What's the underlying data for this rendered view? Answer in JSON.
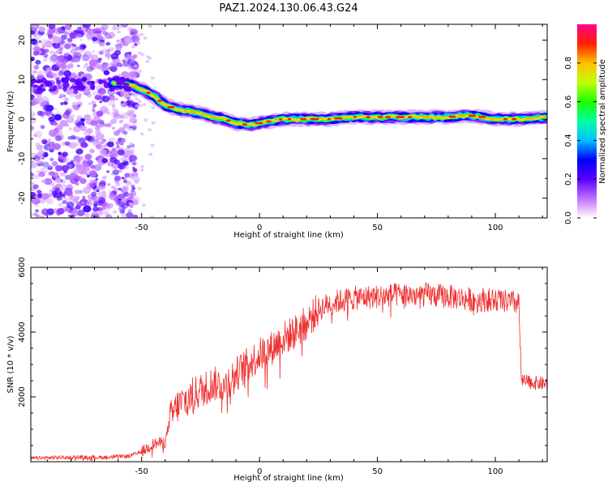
{
  "title": "PAZ1.2024.130.06.43.G24",
  "chart_data": [
    {
      "type": "heatmap",
      "xlabel": "Height of straight line (km)",
      "ylabel": "Frequency (Hz)",
      "xlim": [
        -97,
        122
      ],
      "ylim": [
        -25,
        24
      ],
      "xticks": [
        -50,
        0,
        50,
        100
      ],
      "yticks": [
        -20,
        -10,
        0,
        10,
        20
      ],
      "grid": false,
      "colorbar": {
        "label": "Normalized spectral amplitude",
        "ticks": [
          0.0,
          0.2,
          0.4,
          0.6,
          0.8
        ],
        "range": [
          0,
          1
        ],
        "colormap": [
          "#ffffff",
          "#c070ff",
          "#5a00ff",
          "#0000ff",
          "#00c0ff",
          "#00ffa0",
          "#20ff00",
          "#c0ff00",
          "#ffc000",
          "#ff2000",
          "#ff0090"
        ]
      },
      "ridge": {
        "description_values_x": [
          -97,
          -90,
          -80,
          -70,
          -62,
          -58,
          -54,
          -50,
          -45,
          -40,
          -35,
          -30,
          -25,
          -20,
          -15,
          -10,
          -5,
          0,
          5,
          10,
          20,
          30,
          40,
          50,
          60,
          70,
          80,
          88,
          95,
          100,
          110,
          122
        ],
        "frequency_hz": [
          8,
          8.5,
          9,
          9.5,
          9,
          9,
          8.5,
          7.5,
          6,
          3.5,
          2.5,
          2,
          1.5,
          0.5,
          0,
          -1,
          -1.5,
          -1,
          -0.5,
          0,
          0,
          0,
          0.5,
          0.5,
          0.5,
          0.5,
          0.5,
          1,
          0.5,
          0,
          0,
          0.5
        ]
      }
    },
    {
      "type": "line",
      "xlabel": "Height of straight line (km)",
      "ylabel": "SNR (10 * v/v)",
      "xlim": [
        -97,
        122
      ],
      "ylim": [
        0,
        6000
      ],
      "xticks": [
        -50,
        0,
        50,
        100
      ],
      "yticks": [
        2000,
        4000,
        6000
      ],
      "grid": false,
      "color": "#f03030",
      "series": [
        {
          "x": [
            -97,
            -90,
            -80,
            -70,
            -60,
            -55,
            -50,
            -45,
            -40,
            -38,
            -35,
            -30,
            -25,
            -20,
            -15,
            -10,
            -5,
            0,
            5,
            10,
            15,
            20,
            25,
            30,
            40,
            50,
            60,
            70,
            80,
            90,
            100,
            108,
            110,
            111,
            115,
            122
          ],
          "values": [
            100,
            120,
            140,
            130,
            150,
            180,
            300,
            550,
            600,
            1300,
            1700,
            2000,
            2200,
            2400,
            2400,
            2700,
            3000,
            3300,
            3500,
            3800,
            4000,
            4300,
            4700,
            4900,
            5050,
            5100,
            5150,
            5150,
            5100,
            5000,
            5000,
            4900,
            4900,
            2500,
            2450,
            2400
          ]
        }
      ]
    }
  ]
}
